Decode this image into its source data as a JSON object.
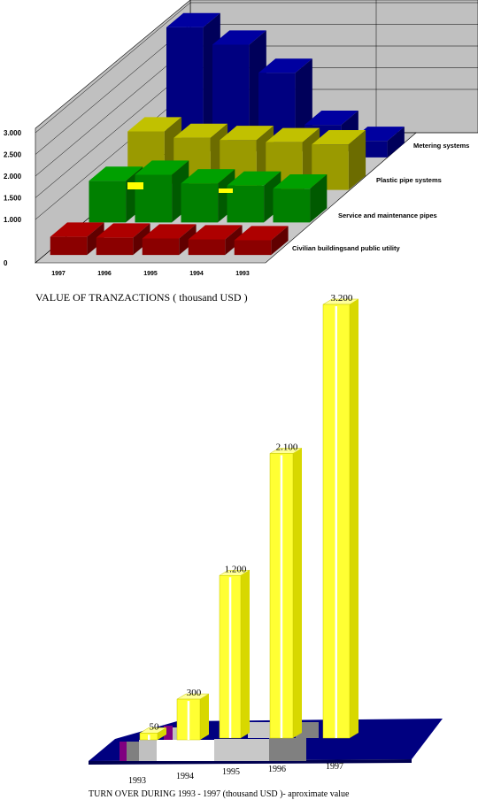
{
  "chart_data": [
    {
      "type": "bar",
      "title": "VALUE OF TRANZACTIONS ( thousand USD )",
      "categories": [
        "1997",
        "1996",
        "1995",
        "1994",
        "1993"
      ],
      "y_ticks": [
        "0",
        "1.000",
        "1.500",
        "2.000",
        "2.500",
        "3.000"
      ],
      "ylim": [
        0,
        3000
      ],
      "grid": true,
      "legend_placement": "right",
      "series": [
        {
          "name": "Civilian buildingsand public utility",
          "color": "#8b0000",
          "values": [
            420,
            400,
            380,
            360,
            340
          ]
        },
        {
          "name": "Service and maintenance pipes",
          "color": "#008000",
          "values": [
            960,
            1100,
            900,
            850,
            780
          ]
        },
        {
          "name": "Plastic pipe systems",
          "color": "#9a9a00",
          "values": [
            1350,
            1200,
            1150,
            1100,
            1050
          ]
        },
        {
          "name": "Metering systems",
          "color": "#000080",
          "values": [
            3000,
            2600,
            1950,
            750,
            380
          ]
        }
      ]
    },
    {
      "type": "bar",
      "title": "TURN OVER DURING 1993 - 1997 (thousand USD )- aproximate value",
      "categories": [
        "1993",
        "1994",
        "1995",
        "1996",
        "1997"
      ],
      "data_labels": [
        "50",
        "300",
        "1.200",
        "2.100",
        "3.200"
      ],
      "values": [
        50,
        300,
        1200,
        2100,
        3200
      ],
      "colors": {
        "bar": "#ffff33",
        "floor": "#000080"
      }
    }
  ]
}
